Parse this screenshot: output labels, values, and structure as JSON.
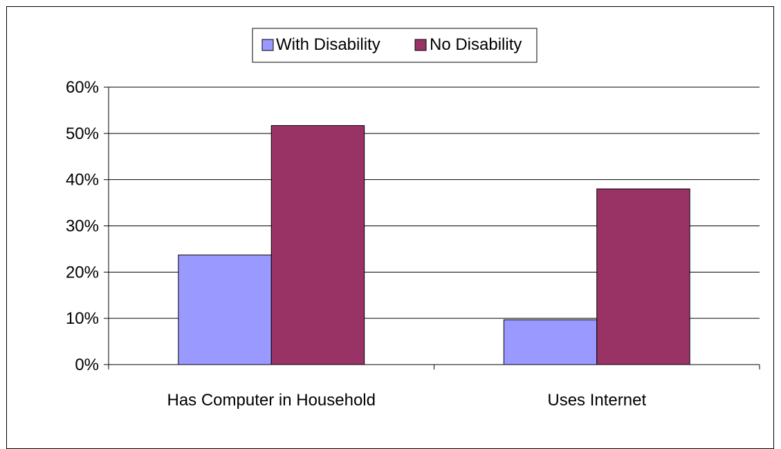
{
  "chart_data": {
    "type": "bar",
    "categories": [
      "Has Computer in Household",
      "Uses Internet"
    ],
    "series": [
      {
        "name": "With Disability",
        "values": [
          0.237,
          0.097
        ],
        "color": "#9999ff"
      },
      {
        "name": "No Disability",
        "values": [
          0.517,
          0.38
        ],
        "color": "#993366"
      }
    ],
    "title": "",
    "xlabel": "",
    "ylabel": "",
    "ylim": [
      0,
      0.6
    ],
    "yticks": [
      {
        "value": 0,
        "label": "0%"
      },
      {
        "value": 0.1,
        "label": "10%"
      },
      {
        "value": 0.2,
        "label": "20%"
      },
      {
        "value": 0.3,
        "label": "30%"
      },
      {
        "value": 0.4,
        "label": "40%"
      },
      {
        "value": 0.5,
        "label": "50%"
      },
      {
        "value": 0.6,
        "label": "60%"
      }
    ],
    "grid": true,
    "legend_position": "top-center",
    "axis_color": "#000000",
    "grid_color": "#000000"
  }
}
